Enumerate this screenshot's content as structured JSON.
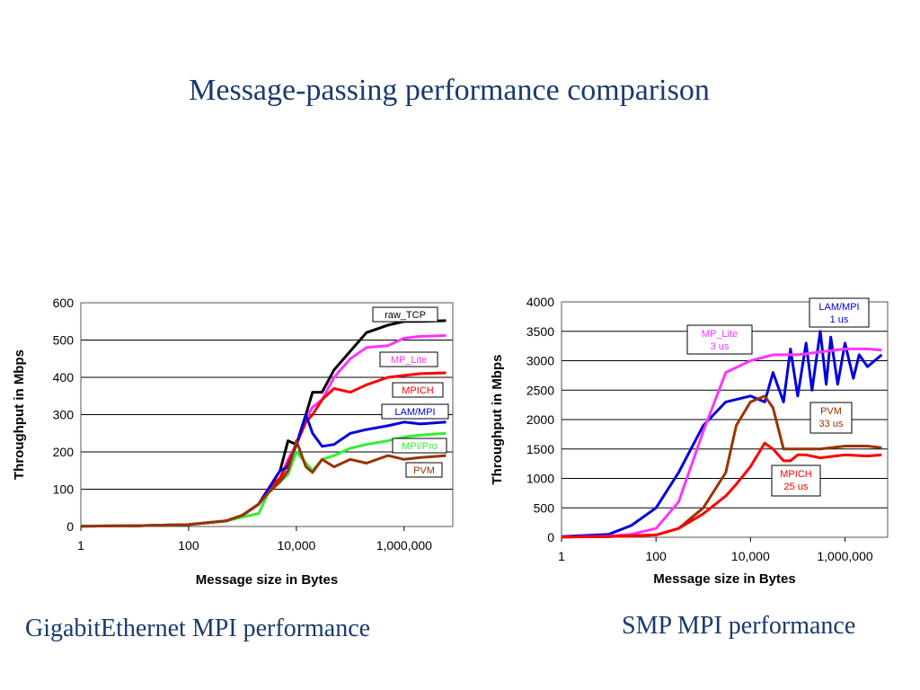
{
  "slide_title": "Message-passing performance comparison",
  "captions": [
    "GigabitEthernet MPI performance",
    "SMP MPI performance"
  ],
  "chart_data": [
    {
      "type": "line",
      "xlabel": "Message size in Bytes",
      "ylabel": "Throughput in Mbps",
      "x_scale": "log",
      "xlim": [
        1,
        8000000
      ],
      "ylim": [
        0,
        600
      ],
      "x_ticks": [
        {
          "v": 1,
          "label": "1"
        },
        {
          "v": 100,
          "label": "100"
        },
        {
          "v": 10000,
          "label": "10,000"
        },
        {
          "v": 1000000,
          "label": "1,000,000"
        }
      ],
      "y_ticks": [
        {
          "v": 0,
          "label": "0"
        },
        {
          "v": 100,
          "label": "100"
        },
        {
          "v": 200,
          "label": "200"
        },
        {
          "v": 300,
          "label": "300"
        },
        {
          "v": 400,
          "label": "400"
        },
        {
          "v": 500,
          "label": "500"
        },
        {
          "v": 600,
          "label": "600"
        }
      ],
      "grid": "horizontal",
      "series": [
        {
          "name": "raw_TCP",
          "color": "#000000",
          "x": [
            1,
            10,
            100,
            500,
            1000,
            2000,
            3000,
            5000,
            7000,
            10000,
            15000,
            20000,
            30000,
            50000,
            100000,
            200000,
            500000,
            1000000,
            2000000,
            6000000
          ],
          "y": [
            1,
            2,
            5,
            15,
            30,
            60,
            100,
            150,
            230,
            220,
            300,
            360,
            360,
            420,
            470,
            520,
            540,
            550,
            550,
            552
          ]
        },
        {
          "name": "MP_Lite",
          "color": "#ff33ff",
          "x": [
            1,
            10,
            100,
            500,
            1000,
            2000,
            3000,
            5000,
            7000,
            10000,
            15000,
            20000,
            30000,
            50000,
            100000,
            200000,
            500000,
            1000000,
            2000000,
            6000000
          ],
          "y": [
            1,
            2,
            5,
            15,
            30,
            60,
            100,
            130,
            180,
            220,
            290,
            320,
            340,
            400,
            450,
            480,
            485,
            505,
            510,
            512
          ]
        },
        {
          "name": "MPICH",
          "color": "#ff0000",
          "x": [
            1,
            10,
            100,
            500,
            1000,
            2000,
            3000,
            5000,
            7000,
            10000,
            15000,
            20000,
            30000,
            50000,
            100000,
            200000,
            500000,
            1000000,
            2000000,
            6000000
          ],
          "y": [
            1,
            2,
            5,
            15,
            30,
            60,
            100,
            130,
            170,
            220,
            280,
            300,
            340,
            370,
            360,
            380,
            400,
            405,
            410,
            412
          ]
        },
        {
          "name": "LAM/MPI",
          "color": "#0000dd",
          "x": [
            1,
            10,
            100,
            500,
            1000,
            2000,
            3000,
            5000,
            7000,
            10000,
            15000,
            20000,
            30000,
            50000,
            100000,
            200000,
            500000,
            1000000,
            2000000,
            6000000
          ],
          "y": [
            1,
            2,
            5,
            15,
            30,
            60,
            100,
            150,
            160,
            220,
            300,
            250,
            215,
            220,
            250,
            260,
            270,
            280,
            275,
            280
          ]
        },
        {
          "name": "MPI/Pro",
          "color": "#33ee33",
          "x": [
            1,
            10,
            100,
            500,
            1000,
            2000,
            3000,
            5000,
            7000,
            10000,
            15000,
            20000,
            30000,
            50000,
            100000,
            200000,
            500000,
            1000000,
            2000000,
            6000000
          ],
          "y": [
            1,
            2,
            5,
            15,
            25,
            35,
            90,
            120,
            140,
            200,
            170,
            150,
            180,
            190,
            210,
            220,
            230,
            240,
            245,
            250
          ]
        },
        {
          "name": "PVM",
          "color": "#993300",
          "x": [
            1,
            10,
            100,
            500,
            1000,
            2000,
            3000,
            5000,
            7000,
            10000,
            15000,
            20000,
            30000,
            50000,
            100000,
            200000,
            500000,
            1000000,
            2000000,
            6000000
          ],
          "y": [
            1,
            2,
            5,
            15,
            30,
            60,
            90,
            120,
            150,
            230,
            160,
            145,
            180,
            160,
            180,
            170,
            190,
            180,
            185,
            190
          ]
        }
      ],
      "legend_labels": [
        {
          "series": "raw_TCP",
          "text": "raw_TCP"
        },
        {
          "series": "MP_Lite",
          "text": "MP_Lite"
        },
        {
          "series": "MPICH",
          "text": "MPICH"
        },
        {
          "series": "LAM/MPI",
          "text": "LAM/MPI"
        },
        {
          "series": "MPI/Pro",
          "text": "MPI/Pro"
        },
        {
          "series": "PVM",
          "text": "PVM"
        }
      ]
    },
    {
      "type": "line",
      "xlabel": "Message size in Bytes",
      "ylabel": "Throughput in Mbps",
      "x_scale": "log",
      "xlim": [
        1,
        8000000
      ],
      "ylim": [
        0,
        4000
      ],
      "x_ticks": [
        {
          "v": 1,
          "label": "1"
        },
        {
          "v": 100,
          "label": "100"
        },
        {
          "v": 10000,
          "label": "10,000"
        },
        {
          "v": 1000000,
          "label": "1,000,000"
        }
      ],
      "y_ticks": [
        {
          "v": 0,
          "label": "0"
        },
        {
          "v": 500,
          "label": "500"
        },
        {
          "v": 1000,
          "label": "1000"
        },
        {
          "v": 1500,
          "label": "1500"
        },
        {
          "v": 2000,
          "label": "2000"
        },
        {
          "v": 2500,
          "label": "2500"
        },
        {
          "v": 3000,
          "label": "3000"
        },
        {
          "v": 3500,
          "label": "3500"
        },
        {
          "v": 4000,
          "label": "4000"
        }
      ],
      "grid": "horizontal",
      "series": [
        {
          "name": "LAM/MPI",
          "color": "#0000dd",
          "x": [
            1,
            10,
            30,
            100,
            300,
            1000,
            3000,
            10000,
            20000,
            30000,
            50000,
            70000,
            100000,
            150000,
            200000,
            300000,
            400000,
            500000,
            700000,
            1000000,
            1500000,
            2000000,
            3000000,
            6000000
          ],
          "y": [
            10,
            50,
            200,
            500,
            1100,
            1900,
            2300,
            2400,
            2300,
            2800,
            2300,
            3200,
            2400,
            3300,
            2500,
            3500,
            2600,
            3400,
            2600,
            3300,
            2700,
            3100,
            2900,
            3100
          ]
        },
        {
          "name": "MP_Lite",
          "color": "#ff33ff",
          "x": [
            1,
            10,
            30,
            100,
            300,
            1000,
            3000,
            10000,
            30000,
            100000,
            300000,
            1000000,
            3000000,
            6000000
          ],
          "y": [
            5,
            20,
            50,
            150,
            600,
            1800,
            2800,
            3000,
            3100,
            3100,
            3150,
            3200,
            3200,
            3180
          ]
        },
        {
          "name": "PVM",
          "color": "#993300",
          "x": [
            1,
            10,
            100,
            300,
            1000,
            3000,
            5000,
            10000,
            20000,
            30000,
            50000,
            70000,
            100000,
            150000,
            300000,
            1000000,
            3000000,
            6000000
          ],
          "y": [
            5,
            10,
            40,
            150,
            500,
            1100,
            1900,
            2300,
            2400,
            2200,
            1500,
            1500,
            1500,
            1500,
            1500,
            1550,
            1550,
            1520
          ]
        },
        {
          "name": "MPICH",
          "color": "#ff0000",
          "x": [
            1,
            10,
            100,
            300,
            1000,
            3000,
            5000,
            10000,
            20000,
            30000,
            50000,
            70000,
            100000,
            150000,
            300000,
            1000000,
            3000000,
            6000000
          ],
          "y": [
            5,
            10,
            40,
            150,
            400,
            700,
            900,
            1200,
            1600,
            1500,
            1300,
            1300,
            1400,
            1400,
            1350,
            1400,
            1380,
            1400
          ]
        }
      ],
      "legend_labels": [
        {
          "series": "LAM/MPI",
          "text": "LAM/MPI",
          "sub": "1 us"
        },
        {
          "series": "MP_Lite",
          "text": "MP_Lite",
          "sub": "3 us"
        },
        {
          "series": "PVM",
          "text": "PVM",
          "sub": "33 us"
        },
        {
          "series": "MPICH",
          "text": "MPICH",
          "sub": "25 us"
        }
      ]
    }
  ]
}
